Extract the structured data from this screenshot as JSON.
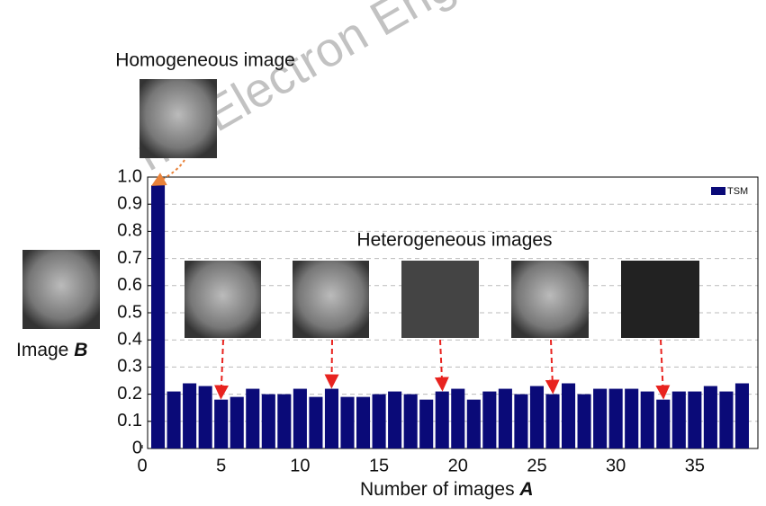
{
  "watermark": "nal Electron Eng",
  "annotations": [
    "Homogeneous image",
    "Heterogeneous images",
    [
      "Image",
      "B"
    ]
  ],
  "chart_data": {
    "type": "bar",
    "x_label": [
      "Number of images",
      "A"
    ],
    "x": [
      1,
      2,
      3,
      4,
      5,
      6,
      7,
      8,
      9,
      10,
      11,
      12,
      13,
      14,
      15,
      16,
      17,
      18,
      19,
      20,
      21,
      22,
      23,
      24,
      25,
      26,
      27,
      28,
      29,
      30,
      31,
      32,
      33,
      34,
      35,
      36,
      37,
      38
    ],
    "series": [
      {
        "name": "TSM",
        "color": "#0a0a78",
        "values": [
          0.97,
          0.21,
          0.24,
          0.23,
          0.18,
          0.19,
          0.22,
          0.2,
          0.2,
          0.22,
          0.19,
          0.22,
          0.19,
          0.19,
          0.2,
          0.21,
          0.2,
          0.18,
          0.21,
          0.22,
          0.18,
          0.21,
          0.22,
          0.2,
          0.23,
          0.2,
          0.24,
          0.2,
          0.22,
          0.22,
          0.22,
          0.21,
          0.18,
          0.21,
          0.21,
          0.23,
          0.21,
          0.24
        ]
      }
    ],
    "xlim": [
      0,
      39
    ],
    "xticks": [
      0,
      5,
      10,
      15,
      20,
      25,
      30,
      35
    ],
    "ylim": [
      0,
      1
    ],
    "yticks": [
      0,
      0.1,
      0.2,
      0.3,
      0.4,
      0.5,
      0.6,
      0.7,
      0.8,
      0.9,
      {
        "value": 1,
        "label": "1.0"
      }
    ],
    "grid": true,
    "legend": "top-right"
  }
}
